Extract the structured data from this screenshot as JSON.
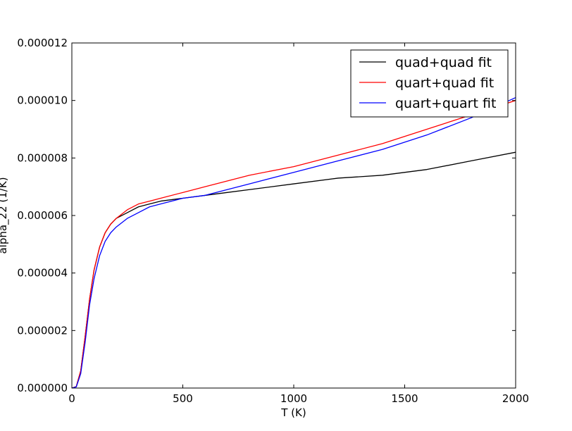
{
  "chart_data": {
    "type": "line",
    "title": "",
    "xlabel": "T (K)",
    "ylabel": "alpha_22 (1/K)",
    "xlim": [
      0,
      2000
    ],
    "ylim": [
      0,
      1.2e-05
    ],
    "xticks": [
      0,
      500,
      1000,
      1500,
      2000
    ],
    "xtick_labels": [
      "0",
      "500",
      "1000",
      "1500",
      "2000"
    ],
    "yticks": [
      0,
      2e-06,
      4e-06,
      6e-06,
      8e-06,
      1e-05,
      1.2e-05
    ],
    "ytick_labels": [
      "0.000000",
      "0.000002",
      "0.000004",
      "0.000006",
      "0.000008",
      "0.000010",
      "0.000012"
    ],
    "grid": false,
    "legend_position": "top-right",
    "series": [
      {
        "name": "quad+quad fit",
        "color": "#000000",
        "x": [
          0,
          20,
          40,
          60,
          80,
          100,
          125,
          150,
          175,
          200,
          250,
          300,
          350,
          400,
          500,
          600,
          700,
          800,
          1000,
          1200,
          1400,
          1600,
          1800,
          2000
        ],
        "y": [
          0,
          5e-08,
          6e-07,
          1.8e-06,
          3.1e-06,
          4.1e-06,
          4.9e-06,
          5.4e-06,
          5.7e-06,
          5.9e-06,
          6.1e-06,
          6.3e-06,
          6.4e-06,
          6.5e-06,
          6.6e-06,
          6.7e-06,
          6.8e-06,
          6.9e-06,
          7.1e-06,
          7.3e-06,
          7.4e-06,
          7.6e-06,
          7.9e-06,
          8.2e-06
        ]
      },
      {
        "name": "quart+quad fit",
        "color": "#ff0000",
        "x": [
          0,
          20,
          40,
          60,
          80,
          100,
          125,
          150,
          175,
          200,
          250,
          300,
          350,
          400,
          500,
          600,
          700,
          800,
          1000,
          1200,
          1400,
          1600,
          1800,
          2000
        ],
        "y": [
          0,
          5e-08,
          6e-07,
          1.8e-06,
          3.1e-06,
          4.1e-06,
          4.9e-06,
          5.4e-06,
          5.7e-06,
          5.9e-06,
          6.2e-06,
          6.4e-06,
          6.5e-06,
          6.6e-06,
          6.8e-06,
          7e-06,
          7.2e-06,
          7.4e-06,
          7.7e-06,
          8.1e-06,
          8.5e-06,
          9e-06,
          9.5e-06,
          1e-05
        ]
      },
      {
        "name": "quart+quart fit",
        "color": "#0000ff",
        "x": [
          0,
          20,
          40,
          60,
          80,
          100,
          125,
          150,
          175,
          200,
          250,
          300,
          350,
          400,
          500,
          600,
          700,
          800,
          1000,
          1200,
          1400,
          1600,
          1800,
          2000
        ],
        "y": [
          0,
          4e-08,
          5e-07,
          1.6e-06,
          2.9e-06,
          3.8e-06,
          4.6e-06,
          5.1e-06,
          5.4e-06,
          5.6e-06,
          5.9e-06,
          6.1e-06,
          6.3e-06,
          6.4e-06,
          6.6e-06,
          6.7e-06,
          6.9e-06,
          7.1e-06,
          7.5e-06,
          7.9e-06,
          8.3e-06,
          8.8e-06,
          9.4e-06,
          1.01e-05
        ]
      }
    ]
  }
}
